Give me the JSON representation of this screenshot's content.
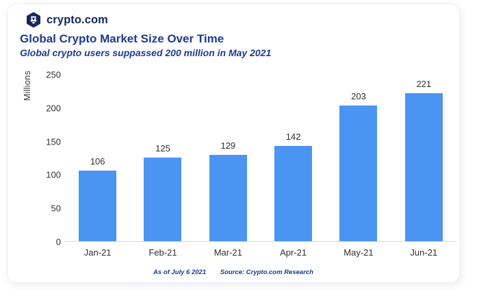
{
  "brand": {
    "logo_icon": "crypto-com-shield",
    "logo_text": "crypto.com"
  },
  "header": {
    "title": "Global Crypto Market Size Over Time",
    "subtitle": "Global crypto users suppassed 200 million in May 2021"
  },
  "footer": {
    "as_of": "As of July 6 2021",
    "source": "Source: Crypto.com Research"
  },
  "colors": {
    "bar": "#4a94f2",
    "title_navy": "#1d3a8f",
    "logo_navy": "#16275e",
    "axis_text": "#2f2f2f",
    "axis_line": "#d6d7dd"
  },
  "chart_data": {
    "type": "bar",
    "title": "Global Crypto Market Size Over Time",
    "subtitle": "Global crypto users suppassed 200 million in May 2021",
    "categories": [
      "Jan-21",
      "Feb-21",
      "Mar-21",
      "Apr-21",
      "May-21",
      "Jun-21"
    ],
    "values": [
      106,
      125,
      129,
      142,
      203,
      221
    ],
    "xlabel": "",
    "ylabel": "Millions",
    "yticks": [
      0,
      50,
      100,
      150,
      200,
      250
    ],
    "ylim": [
      0,
      250
    ],
    "grid": false,
    "legend": false,
    "bar_labels": true,
    "bar_color": "#4a94f2"
  }
}
